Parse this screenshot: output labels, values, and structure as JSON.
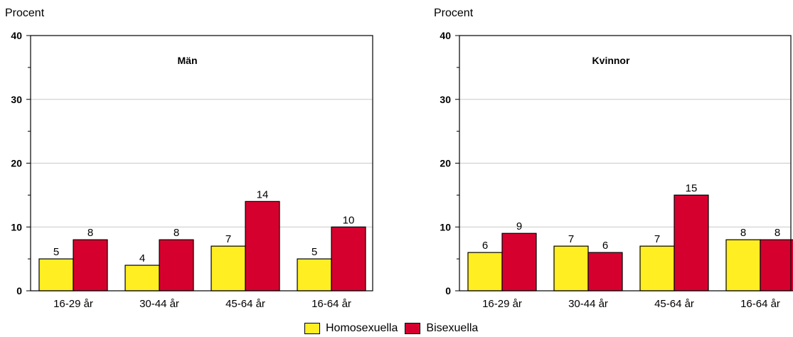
{
  "chart_data": [
    {
      "type": "bar",
      "title": "Män",
      "ylabel": "Procent",
      "ylim": [
        0,
        40
      ],
      "yticks": [
        "0",
        "10",
        "20",
        "30",
        "40"
      ],
      "categories": [
        "16-29 år",
        "30-44 år",
        "45-64 år",
        "16-64 år"
      ],
      "series": [
        {
          "name": "Homosexuella",
          "values": [
            5,
            4,
            7,
            5
          ],
          "labels": [
            "5",
            "4",
            "7",
            "5"
          ]
        },
        {
          "name": "Bisexuella",
          "values": [
            8,
            8,
            14,
            10
          ],
          "labels": [
            "8",
            "8",
            "14",
            "10"
          ]
        }
      ],
      "grid": true
    },
    {
      "type": "bar",
      "title": "Kvinnor",
      "ylabel": "Procent",
      "ylim": [
        0,
        40
      ],
      "yticks": [
        "0",
        "10",
        "20",
        "30",
        "40"
      ],
      "categories": [
        "16-29 år",
        "30-44 år",
        "45-64 år",
        "16-64 år"
      ],
      "series": [
        {
          "name": "Homosexuella",
          "values": [
            6,
            7,
            7,
            8
          ],
          "labels": [
            "6",
            "7",
            "7",
            "8"
          ]
        },
        {
          "name": "Bisexuella",
          "values": [
            9,
            6,
            15,
            8
          ],
          "labels": [
            "9",
            "6",
            "15",
            "8"
          ]
        }
      ],
      "grid": true
    }
  ],
  "legend": [
    {
      "label": "Homosexuella",
      "color": "#ffee22"
    },
    {
      "label": "Bisexuella",
      "color": "#d6002f"
    }
  ],
  "colors": {
    "homosexuella": "#ffee22",
    "bisexuella": "#d6002f",
    "grid": "#c8c8c8"
  }
}
